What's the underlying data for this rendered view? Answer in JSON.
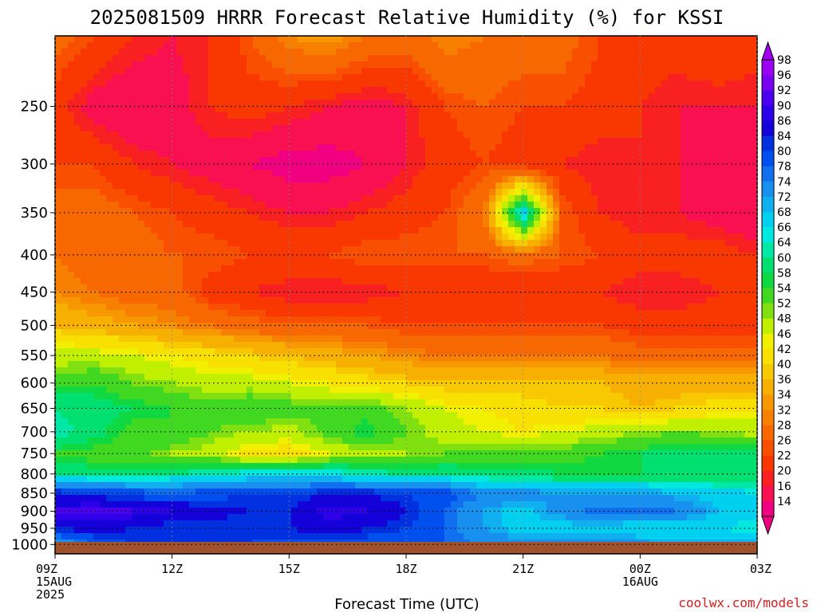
{
  "chart_data": {
    "type": "heatmap",
    "title": "2025081509 HRRR Forecast Relative Humidity (%) for KSSI",
    "xlabel": "Forecast Time (UTC)",
    "ylabel": "",
    "x_hours": [
      0,
      1,
      2,
      3,
      4,
      5,
      6,
      7,
      8,
      9,
      10,
      11,
      12,
      13,
      14,
      15,
      16,
      17,
      18
    ],
    "x_ticks": [
      {
        "hour": 0,
        "lines": [
          "09Z",
          "15AUG",
          "2025"
        ]
      },
      {
        "hour": 3,
        "lines": [
          "12Z"
        ]
      },
      {
        "hour": 6,
        "lines": [
          "15Z"
        ]
      },
      {
        "hour": 9,
        "lines": [
          "18Z"
        ]
      },
      {
        "hour": 12,
        "lines": [
          "21Z"
        ]
      },
      {
        "hour": 15,
        "lines": [
          "00Z",
          "16AUG"
        ]
      },
      {
        "hour": 18,
        "lines": [
          "03Z"
        ]
      }
    ],
    "y_ticks": [
      250,
      300,
      350,
      400,
      450,
      500,
      550,
      600,
      650,
      700,
      750,
      800,
      850,
      900,
      950,
      1000
    ],
    "y_scale": "log-pressure",
    "ylim": [
      200,
      1030
    ],
    "levels": [
      200,
      250,
      300,
      350,
      400,
      450,
      500,
      550,
      600,
      650,
      700,
      750,
      800,
      850,
      900,
      950,
      1000
    ],
    "values": [
      [
        30,
        26,
        22,
        20,
        22,
        28,
        34,
        36,
        32,
        30,
        34,
        32,
        30,
        30,
        26,
        24,
        24,
        26,
        24
      ],
      [
        24,
        18,
        16,
        18,
        22,
        24,
        22,
        20,
        18,
        20,
        26,
        28,
        26,
        26,
        24,
        22,
        20,
        20,
        20
      ],
      [
        26,
        26,
        22,
        20,
        18,
        16,
        14,
        14,
        16,
        20,
        24,
        26,
        24,
        22,
        20,
        22,
        20,
        18,
        20
      ],
      [
        30,
        30,
        28,
        26,
        24,
        22,
        20,
        20,
        22,
        24,
        26,
        32,
        72,
        28,
        22,
        20,
        20,
        18,
        16
      ],
      [
        32,
        30,
        30,
        28,
        28,
        26,
        26,
        26,
        28,
        28,
        28,
        28,
        30,
        28,
        26,
        24,
        24,
        24,
        22
      ],
      [
        34,
        32,
        30,
        30,
        24,
        22,
        20,
        20,
        20,
        22,
        22,
        22,
        22,
        22,
        22,
        20,
        20,
        22,
        22
      ],
      [
        40,
        38,
        36,
        34,
        32,
        30,
        28,
        28,
        28,
        26,
        26,
        26,
        26,
        26,
        26,
        24,
        24,
        24,
        24
      ],
      [
        50,
        50,
        48,
        46,
        44,
        42,
        40,
        38,
        36,
        34,
        32,
        32,
        32,
        32,
        32,
        30,
        30,
        30,
        30
      ],
      [
        56,
        58,
        54,
        52,
        50,
        50,
        48,
        46,
        44,
        42,
        40,
        40,
        40,
        40,
        40,
        38,
        38,
        38,
        38
      ],
      [
        64,
        62,
        60,
        58,
        56,
        58,
        56,
        54,
        56,
        52,
        48,
        46,
        44,
        42,
        42,
        40,
        42,
        44,
        46
      ],
      [
        66,
        62,
        56,
        58,
        54,
        52,
        50,
        56,
        60,
        54,
        50,
        48,
        46,
        48,
        50,
        52,
        54,
        52,
        50
      ],
      [
        58,
        56,
        56,
        52,
        50,
        44,
        44,
        48,
        50,
        52,
        54,
        56,
        56,
        56,
        58,
        60,
        62,
        62,
        64
      ],
      [
        64,
        62,
        62,
        64,
        66,
        68,
        68,
        68,
        66,
        64,
        64,
        62,
        62,
        60,
        60,
        60,
        60,
        60,
        60
      ],
      [
        86,
        84,
        82,
        80,
        82,
        84,
        84,
        86,
        86,
        84,
        82,
        78,
        76,
        74,
        74,
        74,
        72,
        70,
        68
      ],
      [
        92,
        94,
        92,
        90,
        88,
        86,
        86,
        92,
        90,
        86,
        80,
        74,
        70,
        76,
        80,
        80,
        78,
        72,
        70
      ],
      [
        86,
        88,
        86,
        84,
        84,
        84,
        86,
        88,
        86,
        84,
        80,
        74,
        70,
        70,
        70,
        68,
        68,
        68,
        66
      ],
      [
        72,
        80,
        84,
        86,
        84,
        84,
        82,
        82,
        82,
        82,
        80,
        78,
        76,
        76,
        76,
        76,
        74,
        74,
        76
      ]
    ],
    "colorbar": {
      "labels": [
        98,
        96,
        92,
        90,
        86,
        84,
        80,
        78,
        74,
        72,
        68,
        66,
        64,
        60,
        58,
        54,
        52,
        48,
        46,
        42,
        40,
        36,
        34,
        32,
        28,
        26,
        22,
        20,
        16,
        14
      ],
      "colors": [
        "#9b00f0",
        "#7a00f0",
        "#4c00f0",
        "#2c00e8",
        "#1400d8",
        "#0030e0",
        "#0050f0",
        "#1070f0",
        "#1890f0",
        "#10b0f0",
        "#00d0f0",
        "#00e8e0",
        "#00e8a8",
        "#00e070",
        "#10d840",
        "#40d820",
        "#80e010",
        "#c0f000",
        "#f0f000",
        "#f8e000",
        "#f8c800",
        "#f8b000",
        "#f89800",
        "#f88000",
        "#f86800",
        "#f85000",
        "#f83800",
        "#f82020",
        "#f81050",
        "#f00080"
      ],
      "top_arrow_color": "#a000f0",
      "bottom_arrow_color": "#f00080"
    },
    "ground_color": "#a0522d"
  },
  "footer": {
    "source": "coolwx.com/models"
  }
}
